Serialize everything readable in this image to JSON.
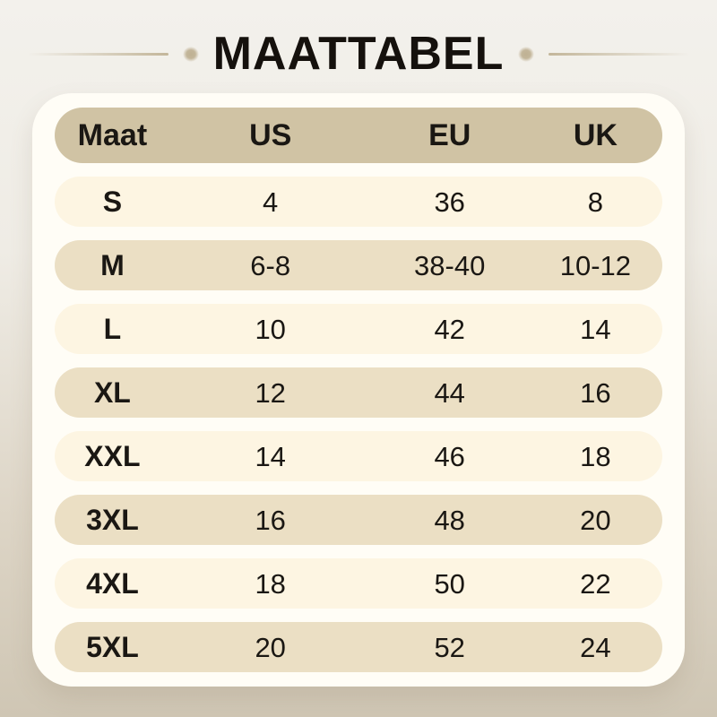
{
  "title": "MAATTABEL",
  "chart_data": {
    "type": "table",
    "title": "MAATTABEL",
    "columns": [
      "Maat",
      "US",
      "EU",
      "UK"
    ],
    "rows": [
      [
        "S",
        "4",
        "36",
        "8"
      ],
      [
        "M",
        "6-8",
        "38-40",
        "10-12"
      ],
      [
        "L",
        "10",
        "42",
        "14"
      ],
      [
        "XL",
        "12",
        "44",
        "16"
      ],
      [
        "XXL",
        "14",
        "46",
        "18"
      ],
      [
        "3XL",
        "16",
        "48",
        "20"
      ],
      [
        "4XL",
        "18",
        "50",
        "22"
      ],
      [
        "5XL",
        "20",
        "52",
        "24"
      ]
    ],
    "layout_hints": {
      "row_shape": "rounded-pill",
      "row_striping": "alternating light/dark beige, header darkest"
    }
  },
  "colors": {
    "page_bg_top": "#f3f1ec",
    "page_bg_bottom": "#cfc6b4",
    "card_bg": "#fffdf6",
    "header_pill": "#d0c3a4",
    "row_light": "#fdf5e2",
    "row_dark": "#ebdfc4",
    "text": "#1a1713",
    "accent_line": "#c3b69a"
  }
}
